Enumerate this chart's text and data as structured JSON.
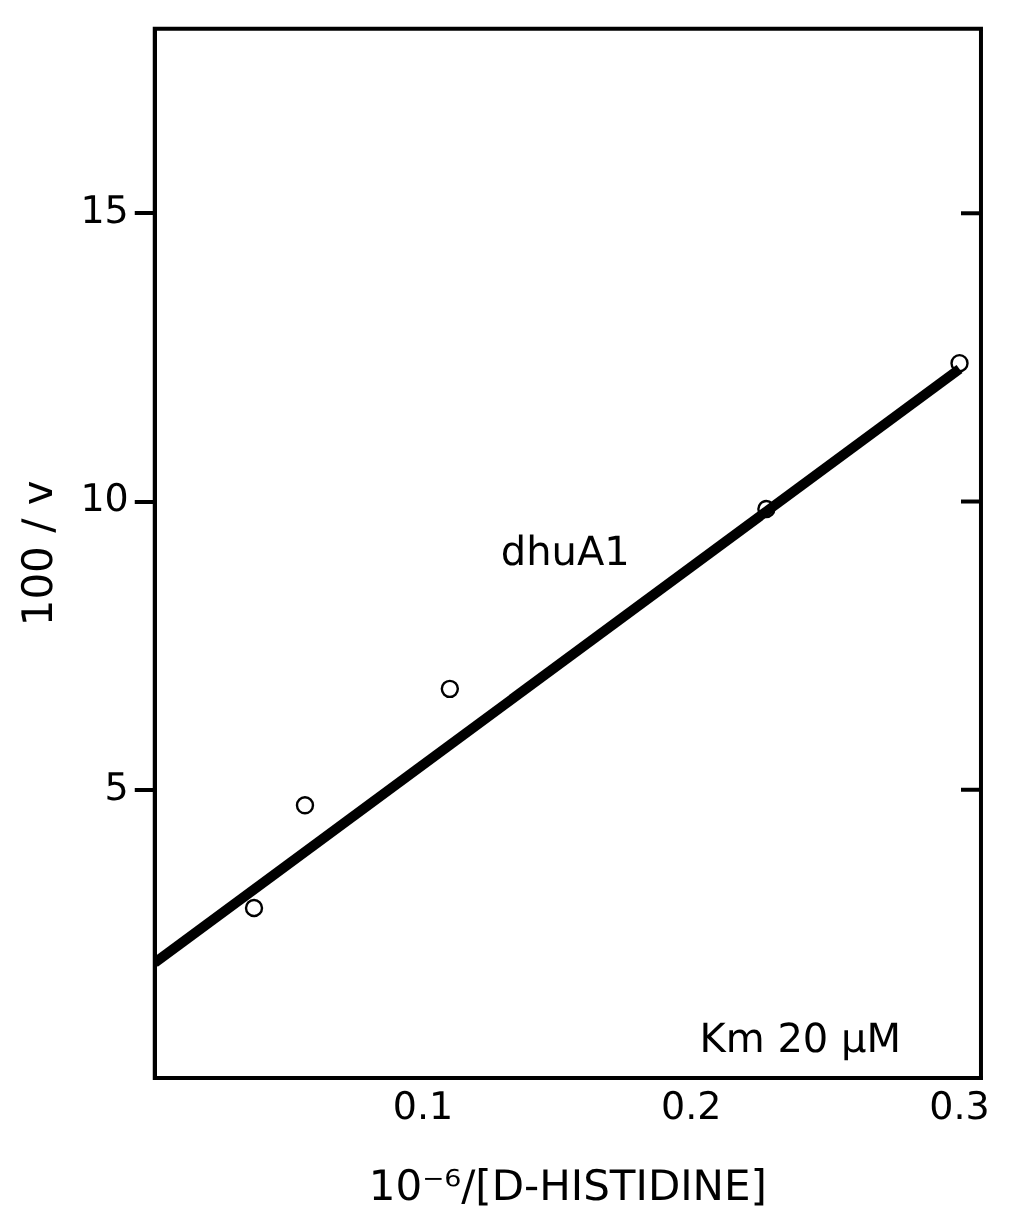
{
  "chart_data": {
    "type": "scatter",
    "xlabel": "10⁻⁶/[D-HISTIDINE]",
    "ylabel": "100 / v",
    "xlim": [
      0,
      0.308
    ],
    "ylim": [
      0,
      18.2
    ],
    "xticks": [
      0.1,
      0.2,
      0.3
    ],
    "yticks": [
      5,
      10,
      15
    ],
    "grid": false,
    "legend": false,
    "marker": "circle",
    "series": [
      {
        "color": "#000000",
        "x": [
          0.037,
          0.056,
          0.11,
          0.228,
          0.3
        ],
        "values": [
          2.95,
          4.73,
          6.75,
          9.87,
          12.4
        ]
      },
      {
        "type": "line",
        "name": "dhuA1",
        "color": "#000000",
        "marker": "none",
        "x": [
          0,
          0.3
        ],
        "values": [
          2.0,
          12.3
        ]
      }
    ],
    "annotations": [
      "Km 20 μM"
    ]
  }
}
